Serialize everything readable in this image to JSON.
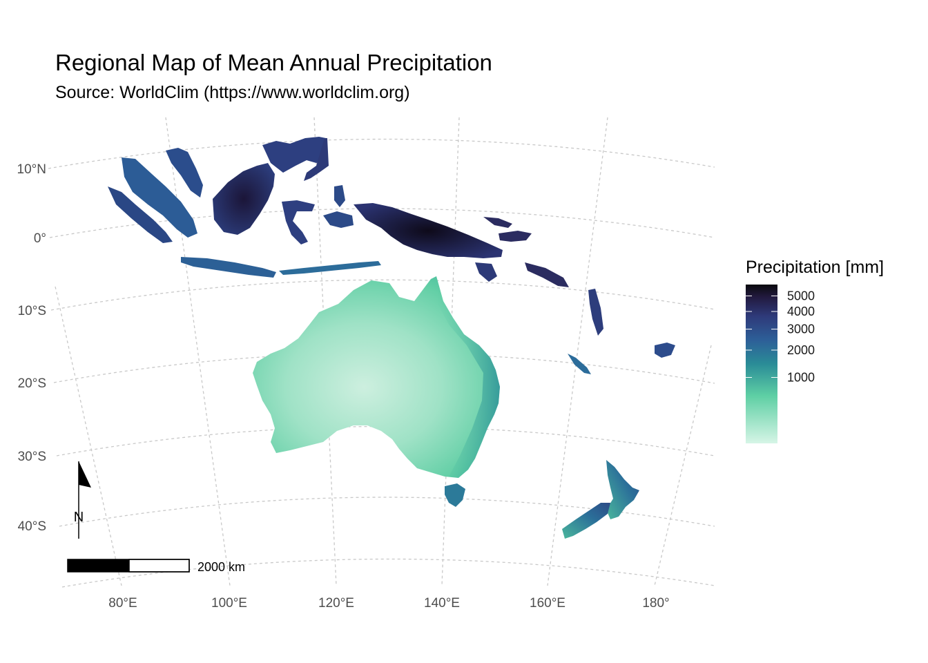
{
  "title": "Regional Map of Mean Annual Precipitation",
  "subtitle": "Source: WorldClim (https://www.worldclim.org)",
  "lat_labels": [
    "10°N",
    "0°",
    "10°S",
    "20°S",
    "30°S",
    "40°S"
  ],
  "lon_labels": [
    "80°E",
    "100°E",
    "120°E",
    "140°E",
    "160°E",
    "180°"
  ],
  "legend": {
    "title": "Precipitation [mm]",
    "breaks": [
      "5000",
      "4000",
      "3000",
      "2000",
      "1000"
    ],
    "break_values": [
      5000,
      4000,
      3000,
      2000,
      1000
    ],
    "colors": [
      "#d2f2e2",
      "#5ecfa4",
      "#2e9c98",
      "#2c6d9b",
      "#2d3f7e",
      "#241c45",
      "#0b0b0f"
    ]
  },
  "scale_bar": {
    "label": "2000 km"
  },
  "north_arrow": {
    "label": "N"
  },
  "colors": {
    "wet": "#2a2f6a",
    "very_wet": "#160f2a",
    "moderate": "#2d6a9a",
    "dry": "#4fc09f",
    "very_dry": "#c9efdf",
    "graticule": "#c8c8c8"
  }
}
